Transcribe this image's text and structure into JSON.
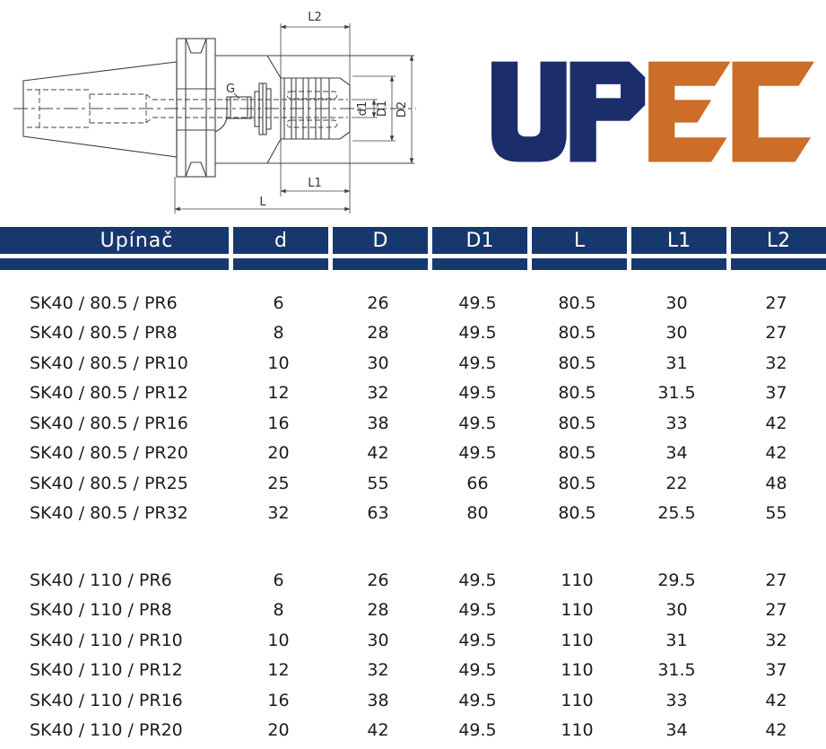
{
  "colors": {
    "header_bg": "#17386e",
    "logo_blue": "#1b2e6b",
    "logo_orange": "#cc6d28",
    "drawing_line": "#404040"
  },
  "logo": {
    "text": "UPEC",
    "blue_part": "UP",
    "orange_part": "EC"
  },
  "drawing": {
    "labels": {
      "l2": "L2",
      "g": "G",
      "d1": "d1",
      "big_d1": "D1",
      "big_d2": "D2",
      "l1": "L1",
      "l": "L"
    }
  },
  "table": {
    "columns": [
      "Upínač",
      "d",
      "D",
      "D1",
      "L",
      "L1",
      "L2"
    ],
    "groups": [
      {
        "rows": [
          [
            "SK40 / 80.5 / PR6",
            "6",
            "26",
            "49.5",
            "80.5",
            "30",
            "27"
          ],
          [
            "SK40 / 80.5 / PR8",
            "8",
            "28",
            "49.5",
            "80.5",
            "30",
            "27"
          ],
          [
            "SK40 / 80.5 / PR10",
            "10",
            "30",
            "49.5",
            "80.5",
            "31",
            "32"
          ],
          [
            "SK40 / 80.5 / PR12",
            "12",
            "32",
            "49.5",
            "80.5",
            "31.5",
            "37"
          ],
          [
            "SK40 / 80.5 / PR16",
            "16",
            "38",
            "49.5",
            "80.5",
            "33",
            "42"
          ],
          [
            "SK40 / 80.5 / PR20",
            "20",
            "42",
            "49.5",
            "80.5",
            "34",
            "42"
          ],
          [
            "SK40 / 80.5 / PR25",
            "25",
            "55",
            "66",
            "80.5",
            "22",
            "48"
          ],
          [
            "SK40 / 80.5 / PR32",
            "32",
            "63",
            "80",
            "80.5",
            "25.5",
            "55"
          ]
        ]
      },
      {
        "rows": [
          [
            "SK40 / 110 / PR6",
            "6",
            "26",
            "49.5",
            "110",
            "29.5",
            "27"
          ],
          [
            "SK40 / 110 / PR8",
            "8",
            "28",
            "49.5",
            "110",
            "30",
            "27"
          ],
          [
            "SK40 / 110 / PR10",
            "10",
            "30",
            "49.5",
            "110",
            "31",
            "32"
          ],
          [
            "SK40 / 110 / PR12",
            "12",
            "32",
            "49.5",
            "110",
            "31.5",
            "37"
          ],
          [
            "SK40 / 110 / PR16",
            "16",
            "38",
            "49.5",
            "110",
            "33",
            "42"
          ],
          [
            "SK40 / 110 / PR20",
            "20",
            "42",
            "49.5",
            "110",
            "34",
            "42"
          ]
        ]
      }
    ]
  }
}
